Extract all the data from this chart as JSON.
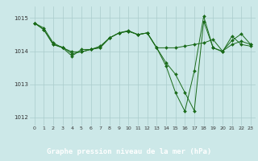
{
  "background_color": "#cce8e8",
  "plot_bg_color": "#cce8e8",
  "footer_color": "#2d6e2d",
  "footer_text_color": "#ffffff",
  "line_color": "#1a6b1a",
  "title": "Graphe pression niveau de la mer (hPa)",
  "ylim": [
    1011.75,
    1015.35
  ],
  "xlim": [
    -0.5,
    23.5
  ],
  "yticks": [
    1012,
    1013,
    1014,
    1015
  ],
  "xticks": [
    0,
    1,
    2,
    3,
    4,
    5,
    6,
    7,
    8,
    9,
    10,
    11,
    12,
    13,
    14,
    15,
    16,
    17,
    18,
    19,
    20,
    21,
    22,
    23
  ],
  "series": [
    [
      1014.85,
      1014.7,
      1014.25,
      1014.1,
      1013.85,
      1014.05,
      1014.05,
      1014.1,
      1014.4,
      1014.55,
      1014.6,
      1014.5,
      1014.55,
      1014.1,
      1014.1,
      1014.1,
      1014.15,
      1014.2,
      1014.25,
      1014.35,
      1014.0,
      1014.2,
      1014.3,
      1014.2
    ],
    [
      1014.85,
      1014.65,
      1014.2,
      1014.1,
      1013.98,
      1013.98,
      1014.05,
      1014.15,
      1014.4,
      1014.55,
      1014.6,
      1014.5,
      1014.55,
      1014.1,
      1013.65,
      1013.3,
      1012.75,
      1012.2,
      1014.9,
      1014.1,
      1013.98,
      1014.45,
      1014.2,
      1014.15
    ],
    [
      1014.85,
      1014.65,
      1014.2,
      1014.12,
      1013.92,
      1013.98,
      1014.05,
      1014.12,
      1014.4,
      1014.55,
      1014.62,
      1014.5,
      1014.55,
      1014.1,
      1013.55,
      1012.75,
      1012.18,
      1013.4,
      1015.05,
      1014.1,
      1014.0,
      1014.32,
      1014.52,
      1014.2
    ]
  ]
}
